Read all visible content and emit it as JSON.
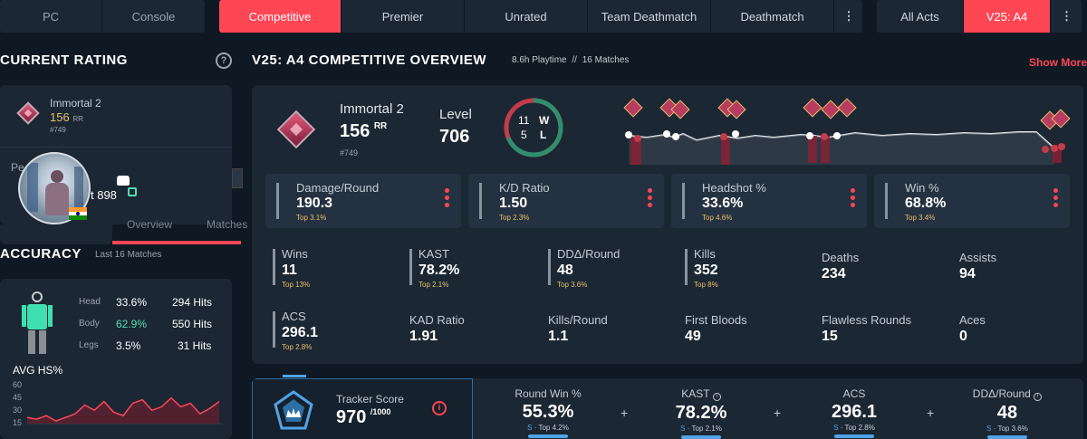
{
  "nav": {
    "platforms": [
      "PC",
      "Console"
    ],
    "modes": [
      "Competitive",
      "Premier",
      "Unrated",
      "Team Deathmatch",
      "Deathmatch"
    ],
    "acts": [
      "All Acts",
      "V25: A4"
    ]
  },
  "left": {
    "current_rating_title": "CURRENT RATING",
    "help_icon": "?",
    "rating_card": {
      "rank_name": "Immortal 2",
      "rr_value": "156",
      "rr_unit": "RR",
      "leaderboard": "#749",
      "peak_label_fragment": "Pe",
      "peak_value_fragment": "t 898",
      "tabs_fragment": [
        "Overview",
        "Matches"
      ]
    },
    "accuracy_title": "ACCURACY",
    "accuracy_sub": "Last 16 Matches",
    "accuracy": [
      {
        "part": "Head",
        "pct": "33.6%",
        "hits": "294 Hits"
      },
      {
        "part": "Body",
        "pct": "62.9%",
        "hits": "550 Hits"
      },
      {
        "part": "Legs",
        "pct": "3.5%",
        "hits": "31 Hits"
      }
    ],
    "avg_hs_title": "AVG HS%",
    "avg_hs_ticks": [
      "60",
      "45",
      "30",
      "15"
    ],
    "avg_hs_series": [
      22,
      20,
      24,
      18,
      22,
      26,
      36,
      30,
      40,
      28,
      24,
      38,
      42,
      30,
      34,
      44,
      34,
      38,
      26,
      32,
      40
    ]
  },
  "overview": {
    "title": "V25: A4 COMPETITIVE OVERVIEW",
    "playtime": "8.6h Playtime",
    "separator": "//",
    "matches": "16 Matches",
    "show_more": "Show More",
    "rank_name": "Immortal 2",
    "rr_value": "156",
    "rr_unit": "RR",
    "leaderboard": "#749",
    "level_label": "Level",
    "level_value": "706",
    "wins_count": "11",
    "wins_letter": "W",
    "losses_count": "5",
    "losses_letter": "L",
    "win_fraction": 0.6875,
    "cards": [
      {
        "label": "Damage/Round",
        "value": "190.3",
        "rank": "Top 3.1%"
      },
      {
        "label": "K/D Ratio",
        "value": "1.50",
        "rank": "Top 2.3%"
      },
      {
        "label": "Headshot %",
        "value": "33.6%",
        "rank": "Top 4.6%"
      },
      {
        "label": "Win %",
        "value": "68.8%",
        "rank": "Top 3.4%"
      }
    ],
    "grid_row1": [
      {
        "label": "Wins",
        "value": "11",
        "rank": "Top 13%",
        "bar": true
      },
      {
        "label": "KAST",
        "value": "78.2%",
        "rank": "Top 2.1%",
        "bar": true
      },
      {
        "label": "DDΔ/Round",
        "value": "48",
        "rank": "Top 3.6%",
        "bar": true
      },
      {
        "label": "Kills",
        "value": "352",
        "rank": "Top 8%",
        "bar": true
      },
      {
        "label": "Deaths",
        "value": "234",
        "rank": "",
        "bar": false
      },
      {
        "label": "Assists",
        "value": "94",
        "rank": "",
        "bar": false
      }
    ],
    "grid_row2": [
      {
        "label": "ACS",
        "value": "296.1",
        "rank": "Top 2.8%",
        "bar": true
      },
      {
        "label": "KAD Ratio",
        "value": "1.91",
        "rank": "",
        "bar": false
      },
      {
        "label": "Kills/Round",
        "value": "1.1",
        "rank": "",
        "bar": false
      },
      {
        "label": "First Bloods",
        "value": "49",
        "rank": "",
        "bar": false
      },
      {
        "label": "Flawless Rounds",
        "value": "15",
        "rank": "",
        "bar": false
      },
      {
        "label": "Aces",
        "value": "0",
        "rank": "",
        "bar": false
      }
    ]
  },
  "tracker": {
    "label": "Tracker Score",
    "value": "970",
    "max": "/1000",
    "info_icon": "i",
    "stats": [
      {
        "label": "Round Win %",
        "value": "55.3%",
        "rank_prefix": "S",
        "rank": "· Top 4.2%"
      },
      {
        "label": "KAST",
        "value": "78.2%",
        "rank_prefix": "S",
        "rank": "· Top 2.1%"
      },
      {
        "label": "ACS",
        "value": "296.1",
        "rank_prefix": "S",
        "rank": "· Top 2.8%"
      },
      {
        "label": "DDΔ/Round",
        "value": "48",
        "rank_prefix": "S",
        "rank": "· Top 3.6%"
      }
    ]
  },
  "colors": {
    "accent": "#ff4655",
    "panel": "#1b2733",
    "bg": "#0f1923",
    "gold": "#e8c06a",
    "win": "#2f8f6c",
    "loss": "#c23c4a"
  }
}
